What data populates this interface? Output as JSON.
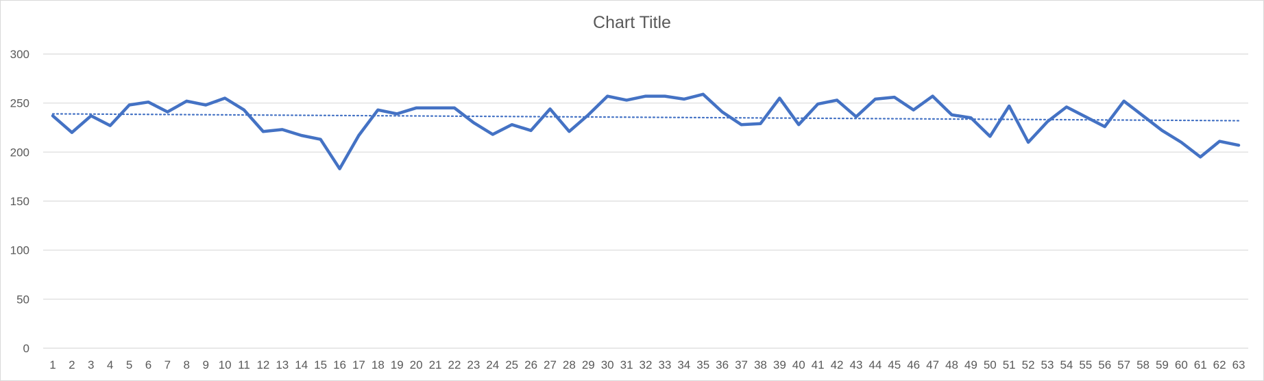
{
  "chart_data": {
    "type": "line",
    "title": "Chart Title",
    "xlabel": "",
    "ylabel": "",
    "ylim": [
      0,
      300
    ],
    "yticks": [
      0,
      50,
      100,
      150,
      200,
      250,
      300
    ],
    "grid": "horizontal",
    "legend": "none",
    "categories": [
      "1",
      "2",
      "3",
      "4",
      "5",
      "6",
      "7",
      "8",
      "9",
      "10",
      "11",
      "12",
      "13",
      "14",
      "15",
      "16",
      "17",
      "18",
      "19",
      "20",
      "21",
      "22",
      "23",
      "24",
      "25",
      "26",
      "27",
      "28",
      "29",
      "30",
      "31",
      "32",
      "33",
      "34",
      "35",
      "36",
      "37",
      "38",
      "39",
      "40",
      "41",
      "42",
      "43",
      "44",
      "45",
      "46",
      "47",
      "48",
      "49",
      "50",
      "51",
      "52",
      "53",
      "54",
      "55",
      "56",
      "57",
      "58",
      "59",
      "60",
      "61",
      "62",
      "63"
    ],
    "series": [
      {
        "color": "#4472c4",
        "values": [
          237,
          220,
          237,
          227,
          248,
          251,
          241,
          252,
          248,
          255,
          243,
          221,
          223,
          217,
          213,
          183,
          217,
          243,
          239,
          245,
          245,
          245,
          230,
          218,
          228,
          222,
          244,
          221,
          238,
          257,
          253,
          257,
          257,
          254,
          259,
          241,
          228,
          229,
          255,
          228,
          249,
          253,
          236,
          254,
          256,
          243,
          257,
          238,
          235,
          216,
          247,
          210,
          231,
          246,
          236,
          226,
          252,
          237,
          222,
          210,
          195,
          211,
          207
        ]
      }
    ],
    "trendline": {
      "type": "linear",
      "style": "dotted",
      "color": "#4472c4",
      "start": 239,
      "end": 232
    },
    "colors": {
      "gridline": "#d9d9d9",
      "text": "#595959"
    }
  }
}
